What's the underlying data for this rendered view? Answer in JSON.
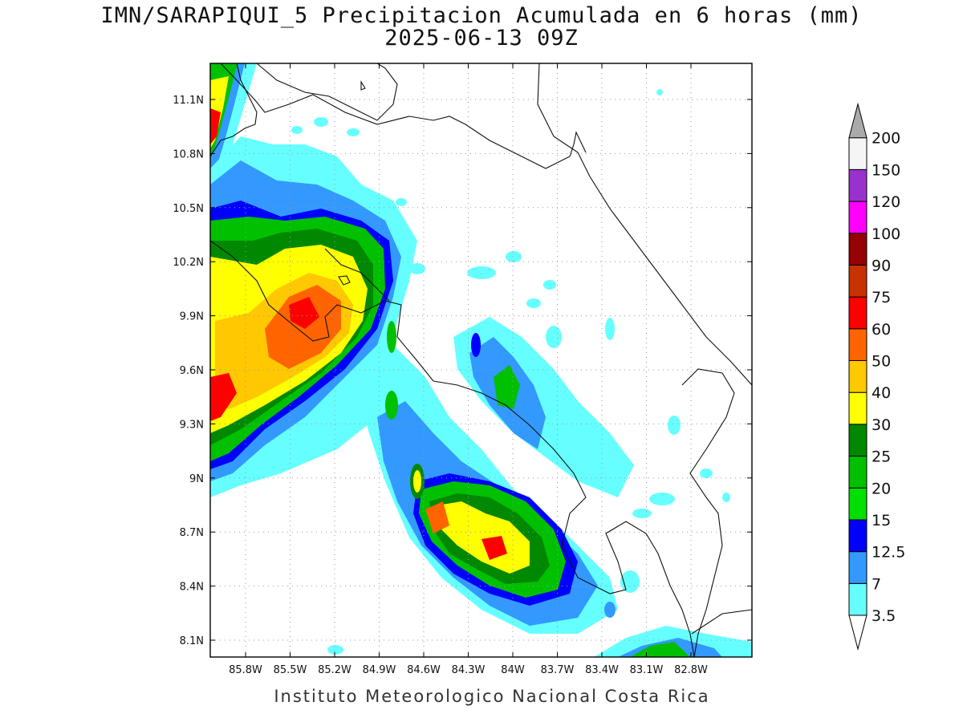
{
  "header": {
    "title": "IMN/SARAPIQUI_5 Precipitacion Acumulada en 6 horas (mm)",
    "subtitle": "2025-06-13 09Z"
  },
  "map": {
    "lat_labels": [
      "11.1N",
      "10.8N",
      "10.5N",
      "10.2N",
      "9.9N",
      "9.6N",
      "9.3N",
      "9N",
      "8.7N",
      "8.4N",
      "8.1N"
    ],
    "lon_labels": [
      "85.8W",
      "85.5W",
      "85.2W",
      "84.9W",
      "84.6W",
      "84.3W",
      "84W",
      "83.7W",
      "83.4W",
      "83.1W",
      "82.8W"
    ]
  },
  "colorbar": {
    "levels": [
      "3.5",
      "7",
      "12.5",
      "15",
      "20",
      "25",
      "30",
      "40",
      "50",
      "60",
      "75",
      "90",
      "100",
      "120",
      "150",
      "200"
    ],
    "colors": [
      "#66ffff",
      "#3399ff",
      "#0000ff",
      "#00e000",
      "#00c000",
      "#008800",
      "#ffff00",
      "#ffc800",
      "#ff6400",
      "#ff0000",
      "#c83200",
      "#960000",
      "#ff00ff",
      "#9932cc",
      "#f5f5f5",
      "#aaaaaa"
    ]
  },
  "footer": {
    "credit": "Instituto Meteorologico Nacional Costa Rica"
  }
}
